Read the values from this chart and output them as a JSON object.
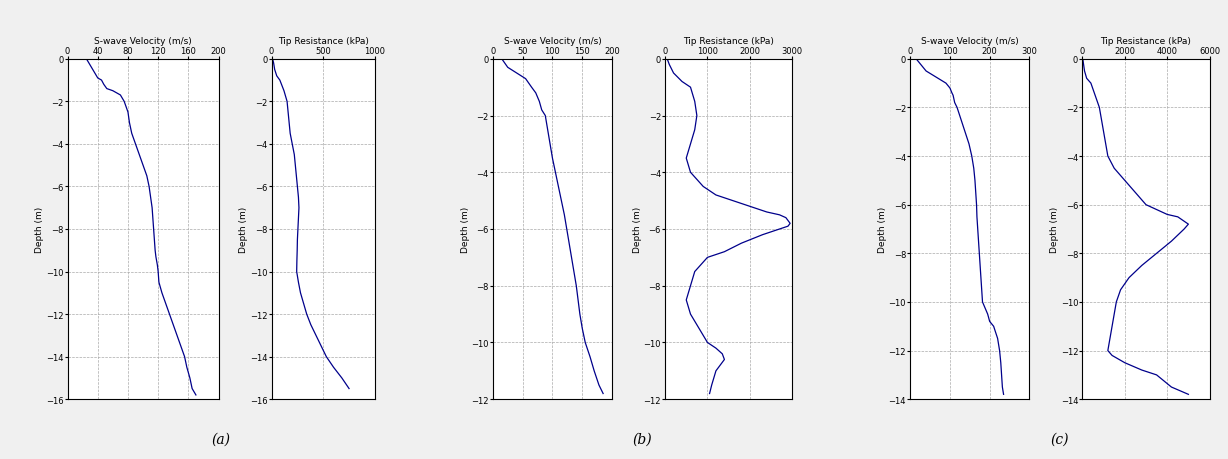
{
  "panels": [
    {
      "label": "(a)",
      "sw_title": "S-wave Velocity (m/s)",
      "tr_title": "Tip Resistance (kPa)",
      "sw_xlim": [
        0,
        200
      ],
      "sw_xticks": [
        0,
        40,
        80,
        120,
        160,
        200
      ],
      "sw_ylim": [
        -16,
        0
      ],
      "sw_yticks": [
        0,
        -2,
        -4,
        -6,
        -8,
        -10,
        -12,
        -14,
        -16
      ],
      "tr_xlim": [
        0,
        1000
      ],
      "tr_xticks": [
        0,
        500,
        1000
      ],
      "tr_ylim": [
        -16,
        0
      ],
      "tr_yticks": [
        0,
        -2,
        -4,
        -6,
        -8,
        -10,
        -12,
        -14,
        -16
      ],
      "sw_depth": [
        0,
        -0.3,
        -0.6,
        -0.9,
        -1.0,
        -1.2,
        -1.4,
        -1.5,
        -1.7,
        -2.0,
        -2.5,
        -3.0,
        -3.5,
        -4.0,
        -4.5,
        -5.0,
        -5.5,
        -6.0,
        -6.5,
        -7.0,
        -7.5,
        -8.0,
        -8.5,
        -9.0,
        -9.3,
        -9.5,
        -9.7,
        -10.0,
        -10.5,
        -11.0,
        -11.5,
        -12.0,
        -12.5,
        -13.0,
        -13.5,
        -14.0,
        -14.5,
        -15.0,
        -15.5,
        -15.8
      ],
      "sw_vel": [
        25,
        30,
        35,
        40,
        45,
        48,
        52,
        60,
        70,
        75,
        80,
        82,
        85,
        90,
        95,
        100,
        105,
        108,
        110,
        112,
        113,
        114,
        115,
        116,
        117,
        118,
        119,
        120,
        121,
        125,
        130,
        135,
        140,
        145,
        150,
        155,
        158,
        162,
        165,
        170
      ],
      "tr_depth": [
        0,
        -0.2,
        -0.5,
        -0.8,
        -1.0,
        -1.5,
        -2.0,
        -2.5,
        -3.0,
        -3.5,
        -4.0,
        -4.5,
        -5.0,
        -5.5,
        -6.0,
        -6.5,
        -7.0,
        -7.5,
        -8.0,
        -8.5,
        -9.0,
        -9.5,
        -10.0,
        -10.5,
        -11.0,
        -11.5,
        -12.0,
        -12.5,
        -13.0,
        -13.5,
        -14.0,
        -14.5,
        -15.0,
        -15.5
      ],
      "tr_res": [
        10,
        20,
        30,
        50,
        80,
        120,
        150,
        160,
        170,
        180,
        200,
        220,
        230,
        240,
        250,
        260,
        265,
        260,
        255,
        250,
        248,
        245,
        243,
        260,
        280,
        310,
        340,
        380,
        430,
        480,
        530,
        600,
        680,
        750
      ]
    },
    {
      "label": "(b)",
      "sw_title": "S-wave Velocity (m/s)",
      "tr_title": "Tip Resistance (kPa)",
      "sw_xlim": [
        0,
        200
      ],
      "sw_xticks": [
        0,
        50,
        100,
        150,
        200
      ],
      "sw_ylim": [
        -12,
        0
      ],
      "sw_yticks": [
        0,
        -2,
        -4,
        -6,
        -8,
        -10,
        -12
      ],
      "tr_xlim": [
        0,
        3000
      ],
      "tr_xticks": [
        0,
        1000,
        2000,
        3000
      ],
      "tr_ylim": [
        -12,
        0
      ],
      "tr_yticks": [
        0,
        -2,
        -4,
        -6,
        -8,
        -10,
        -12
      ],
      "sw_depth": [
        0,
        -0.3,
        -0.5,
        -0.7,
        -1.0,
        -1.2,
        -1.5,
        -1.8,
        -2.0,
        -2.5,
        -3.0,
        -3.5,
        -4.0,
        -4.5,
        -5.0,
        -5.5,
        -6.0,
        -6.5,
        -7.0,
        -7.5,
        -8.0,
        -8.5,
        -9.0,
        -9.5,
        -10.0,
        -10.5,
        -11.0,
        -11.5,
        -11.8
      ],
      "sw_vel": [
        15,
        25,
        40,
        55,
        65,
        72,
        78,
        82,
        88,
        92,
        96,
        100,
        105,
        110,
        115,
        120,
        124,
        128,
        132,
        136,
        140,
        143,
        146,
        150,
        155,
        163,
        170,
        178,
        185
      ],
      "tr_depth": [
        0,
        -0.2,
        -0.5,
        -0.8,
        -1.0,
        -1.5,
        -2.0,
        -2.5,
        -3.0,
        -3.5,
        -4.0,
        -4.5,
        -4.8,
        -5.0,
        -5.2,
        -5.4,
        -5.5,
        -5.6,
        -5.7,
        -5.8,
        -5.9,
        -6.0,
        -6.2,
        -6.5,
        -6.8,
        -7.0,
        -7.5,
        -8.0,
        -8.5,
        -9.0,
        -9.5,
        -10.0,
        -10.2,
        -10.4,
        -10.6,
        -10.8,
        -11.0,
        -11.5,
        -11.8
      ],
      "tr_res": [
        50,
        100,
        200,
        400,
        600,
        700,
        750,
        700,
        600,
        500,
        600,
        900,
        1200,
        1600,
        2000,
        2400,
        2700,
        2850,
        2900,
        2950,
        2900,
        2700,
        2300,
        1800,
        1400,
        1000,
        700,
        600,
        500,
        600,
        800,
        1000,
        1200,
        1350,
        1400,
        1300,
        1200,
        1100,
        1050
      ]
    },
    {
      "label": "(c)",
      "sw_title": "S-wave Velocity (m/s)",
      "tr_title": "Tip Resistance (kPa)",
      "sw_xlim": [
        0,
        300
      ],
      "sw_xticks": [
        0,
        100,
        200,
        300
      ],
      "sw_ylim": [
        -14,
        0
      ],
      "sw_yticks": [
        0,
        -2,
        -4,
        -6,
        -8,
        -10,
        -12,
        -14
      ],
      "tr_xlim": [
        0,
        6000
      ],
      "tr_xticks": [
        0,
        2000,
        4000,
        6000
      ],
      "tr_ylim": [
        -14,
        0
      ],
      "tr_yticks": [
        0,
        -2,
        -4,
        -6,
        -8,
        -10,
        -12,
        -14
      ],
      "sw_depth": [
        0,
        -0.2,
        -0.5,
        -0.8,
        -1.0,
        -1.2,
        -1.4,
        -1.5,
        -1.8,
        -2.0,
        -2.5,
        -3.0,
        -3.5,
        -4.0,
        -4.5,
        -5.0,
        -5.5,
        -6.0,
        -6.5,
        -7.0,
        -7.5,
        -8.0,
        -8.5,
        -9.0,
        -9.5,
        -10.0,
        -10.5,
        -10.8,
        -11.0,
        -11.5,
        -12.0,
        -12.5,
        -13.0,
        -13.5,
        -13.8
      ],
      "sw_vel": [
        15,
        25,
        40,
        70,
        90,
        100,
        105,
        108,
        112,
        118,
        128,
        138,
        148,
        155,
        160,
        163,
        165,
        167,
        168,
        170,
        172,
        174,
        176,
        178,
        180,
        182,
        195,
        200,
        210,
        220,
        225,
        228,
        230,
        232,
        235
      ],
      "tr_depth": [
        0,
        -0.2,
        -0.5,
        -0.8,
        -1.0,
        -1.5,
        -2.0,
        -2.5,
        -3.0,
        -3.5,
        -4.0,
        -4.5,
        -5.0,
        -5.5,
        -6.0,
        -6.2,
        -6.4,
        -6.5,
        -6.8,
        -7.0,
        -7.5,
        -8.0,
        -8.5,
        -9.0,
        -9.5,
        -10.0,
        -10.5,
        -11.0,
        -11.5,
        -12.0,
        -12.2,
        -12.5,
        -12.8,
        -13.0,
        -13.5,
        -13.8
      ],
      "tr_res": [
        20,
        50,
        100,
        200,
        400,
        600,
        800,
        900,
        1000,
        1100,
        1200,
        1500,
        2000,
        2500,
        3000,
        3500,
        4000,
        4500,
        5000,
        4800,
        4200,
        3500,
        2800,
        2200,
        1800,
        1600,
        1500,
        1400,
        1300,
        1200,
        1400,
        2000,
        2800,
        3500,
        4200,
        5000
      ]
    }
  ],
  "line_color": "#00008B",
  "line_width": 0.9,
  "grid_color": "#aaaaaa",
  "grid_style": "--",
  "bg_color": "#f0f0f0",
  "plot_bg": "#ffffff",
  "ylabel": "Depth (m)",
  "label_fontsize": 6.5,
  "tick_fontsize": 6.0,
  "caption_fontsize": 10,
  "panel_widths": [
    1.8,
    1.2,
    1.5,
    1.5,
    1.5,
    1.5
  ]
}
